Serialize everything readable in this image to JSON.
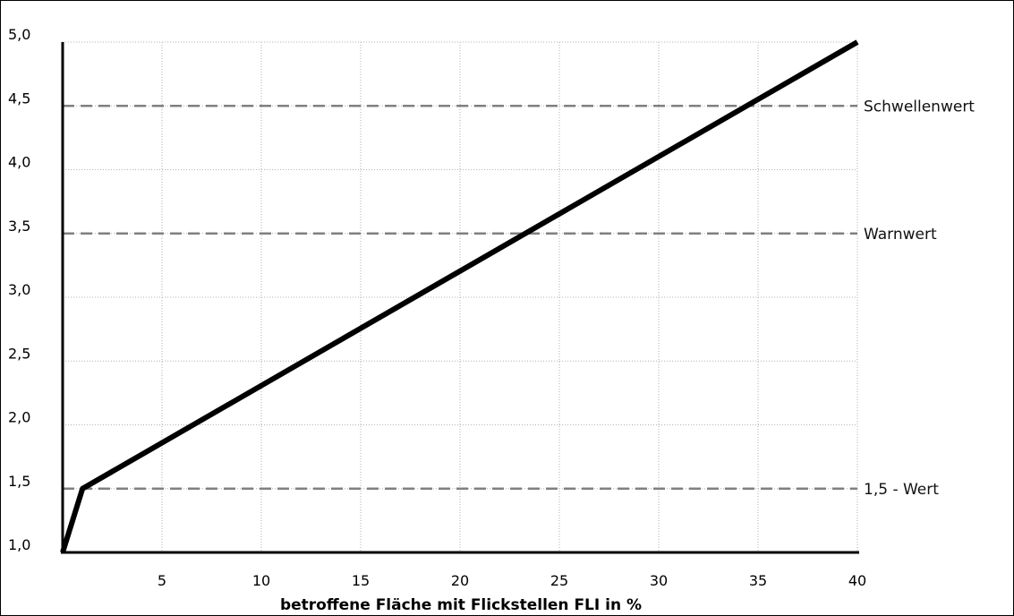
{
  "chart_data": {
    "type": "line",
    "title": "",
    "xlabel": "betroffene Fläche mit Flickstellen FLI in %",
    "ylabel": "",
    "xlim": [
      0,
      40
    ],
    "ylim": [
      1.0,
      5.0
    ],
    "x_ticks": [
      5,
      10,
      15,
      20,
      25,
      30,
      35,
      40
    ],
    "x_tick_labels": [
      "5",
      "10",
      "15",
      "20",
      "25",
      "30",
      "35",
      "40"
    ],
    "y_ticks": [
      1.0,
      1.5,
      2.0,
      2.5,
      3.0,
      3.5,
      4.0,
      4.5,
      5.0
    ],
    "y_tick_labels": [
      "1,0",
      "1,5",
      "2,0",
      "2,5",
      "3,0",
      "3,5",
      "4,0",
      "4,5",
      "5,0"
    ],
    "grid": true,
    "series": [
      {
        "x": [
          0,
          1,
          40
        ],
        "y": [
          1.0,
          1.5,
          5.0
        ]
      }
    ],
    "reference_lines": [
      {
        "y": 4.5,
        "label": "Schwellenwert"
      },
      {
        "y": 3.5,
        "label": "Warnwert"
      },
      {
        "y": 1.5,
        "label": "1,5 - Wert"
      }
    ],
    "colors": {
      "line": "#000000",
      "reference": "#808080",
      "grid": "#b0b0b0"
    }
  }
}
